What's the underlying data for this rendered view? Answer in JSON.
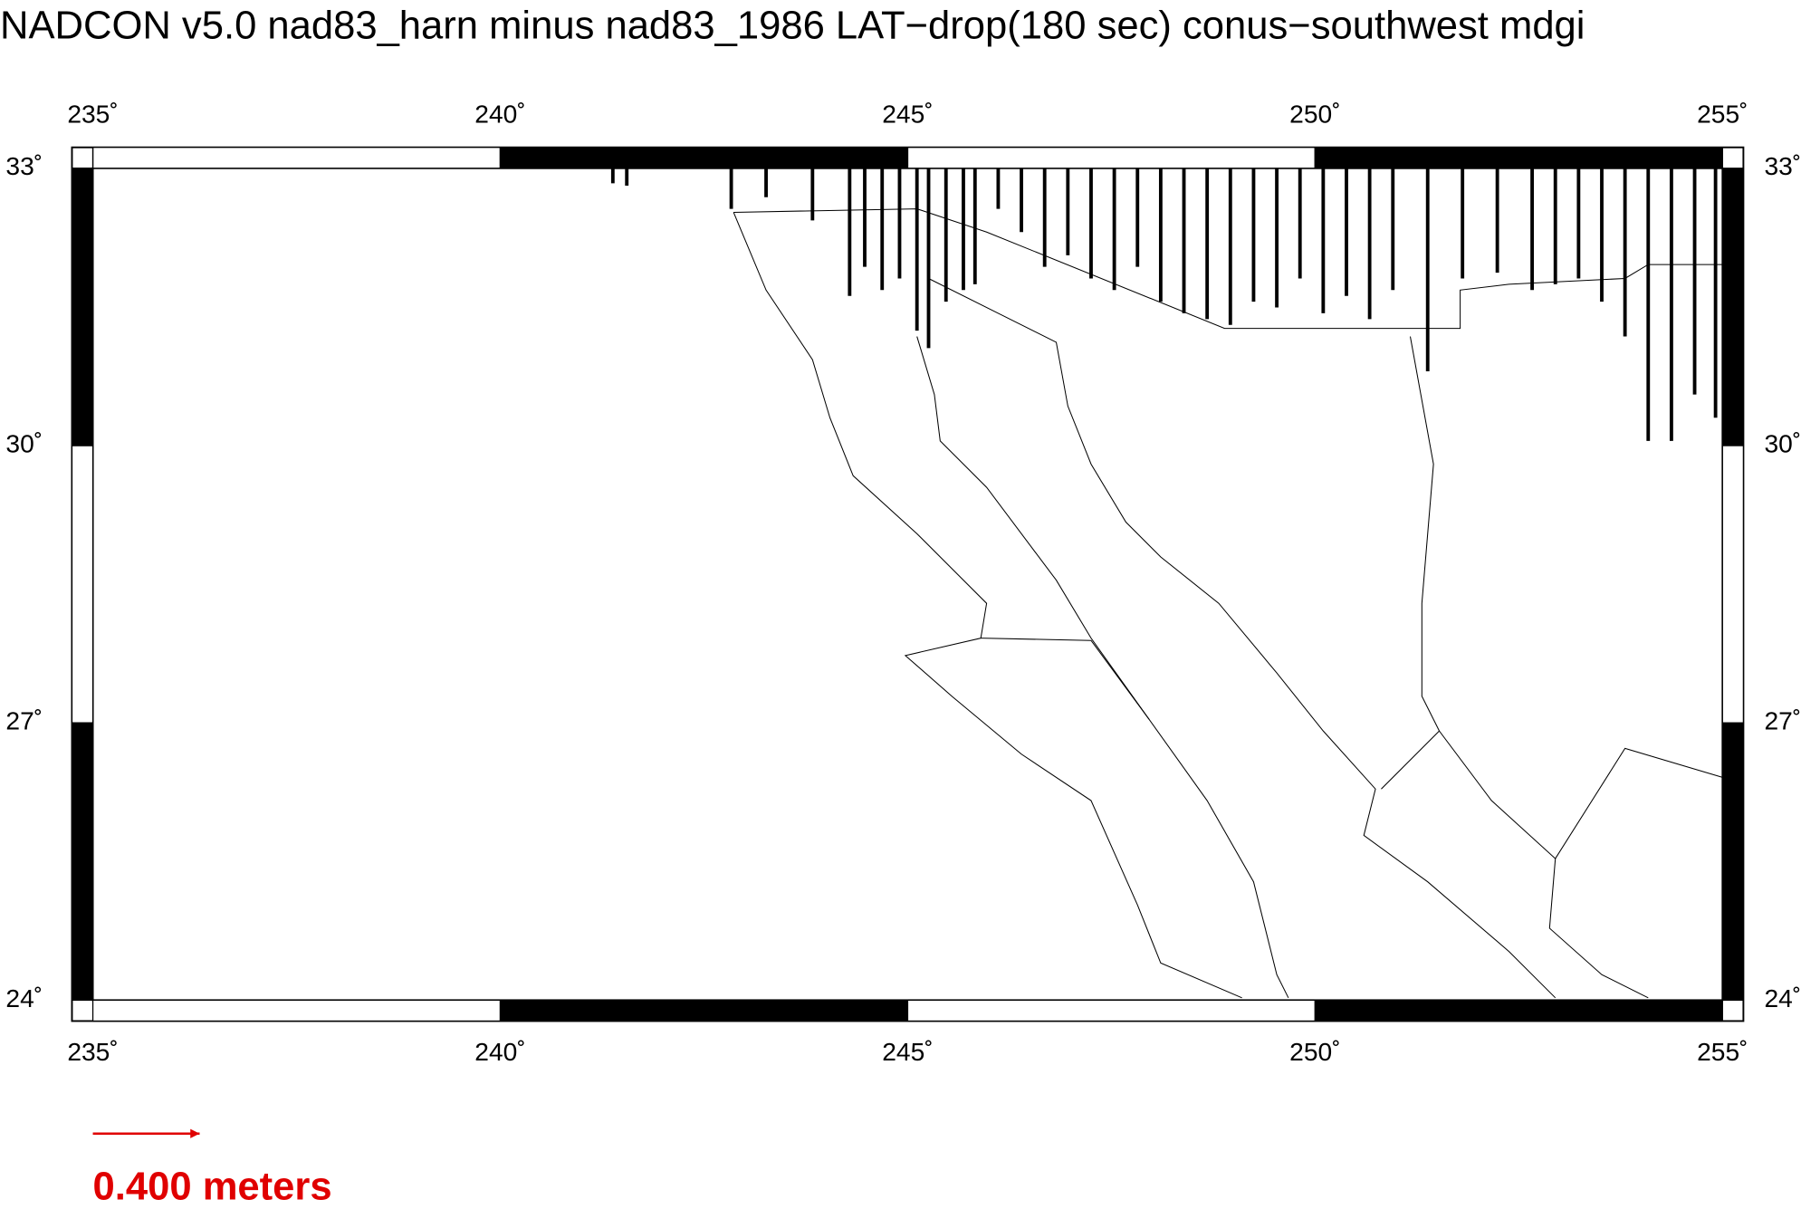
{
  "title": "NADCON v5.0 nad83_harn minus nad83_1986 LAT−drop(180 sec) conus−southwest mdgi",
  "map": {
    "xlim": [
      235,
      255
    ],
    "ylim": [
      24,
      33
    ],
    "xticks": [
      {
        "value": 235,
        "label": "235˚"
      },
      {
        "value": 240,
        "label": "240˚"
      },
      {
        "value": 245,
        "label": "245˚"
      },
      {
        "value": 250,
        "label": "250˚"
      },
      {
        "value": 255,
        "label": "255˚"
      }
    ],
    "yticks": [
      {
        "value": 24,
        "label": "24˚"
      },
      {
        "value": 27,
        "label": "27˚"
      },
      {
        "value": 30,
        "label": "30˚"
      },
      {
        "value": 33,
        "label": "33˚"
      }
    ]
  },
  "scale_label": "0.400 meters"
}
